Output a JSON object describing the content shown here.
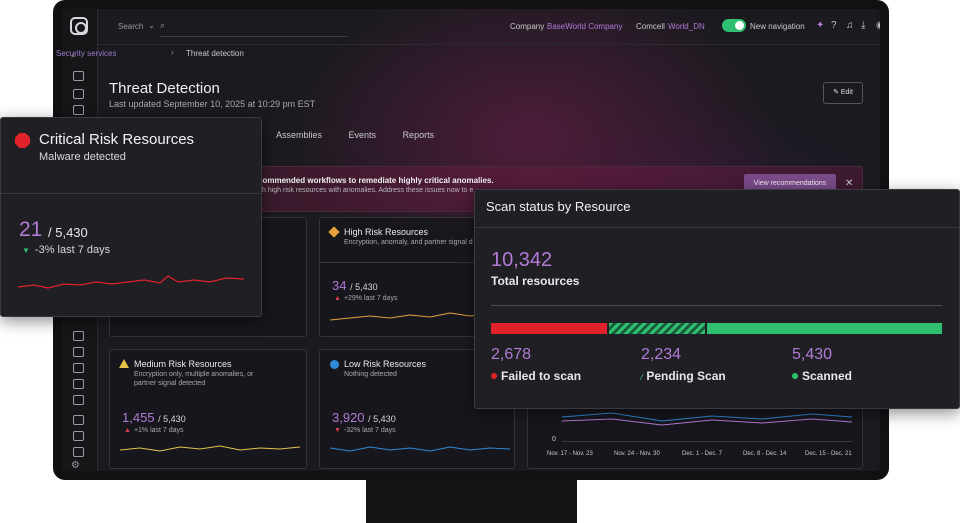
{
  "topbar": {
    "search_label": "Search",
    "company_label": "Company",
    "company_value": "BaseWorld Company",
    "comcell_label": "Comcell",
    "comcell_value": "World_DN",
    "new_navigation_label": "New navigation"
  },
  "breadcrumb": {
    "parent": "Security services",
    "current": "Threat detection"
  },
  "header": {
    "title": "Threat Detection",
    "subtitle": "Last updated September 10, 2025 at 10:29 pm EST",
    "edit_label": "Edit"
  },
  "tabs": [
    {
      "label": "Assemblies"
    },
    {
      "label": "Events"
    },
    {
      "label": "Reports"
    }
  ],
  "banner": {
    "title": "commended workflows to remediate highly critical anomalies.",
    "description": "h high risk resources with anomalies. Address these issues now to e",
    "button_label": "View recommendations"
  },
  "cards": {
    "high": {
      "title": "High Risk Resources",
      "description": "Encryption, anomaly, and partner signal d",
      "value": "34",
      "total": "/ 5,430",
      "change": "+29% last 7 days",
      "color": "#e6a23c"
    },
    "medium": {
      "title": "Medium Risk Resources",
      "description": "Encryption only, multiple anomalies, or partner signal detected",
      "value": "1,455",
      "total": "/ 5,430",
      "change": "+1% last 7 days",
      "color": "#e6c34a"
    },
    "low": {
      "title": "Low Risk Resources",
      "description": "Nothing detected",
      "value": "3,920",
      "total": "/ 5,430",
      "change": "-32% last 7 days",
      "color": "#2f8ad8"
    }
  },
  "critical": {
    "title": "Critical Risk Resources",
    "subtitle": "Malware detected",
    "value": "21",
    "total": "/ 5,430",
    "change": "-3% last 7 days",
    "color": "#e0232a"
  },
  "scan": {
    "title": "Scan status by Resource",
    "total_value": "10,342",
    "total_label": "Total resources",
    "failed": {
      "value": "2,678",
      "label": "Failed to scan",
      "color": "#e0232a",
      "count": 2678
    },
    "pending": {
      "value": "2,234",
      "label": "Pending Scan",
      "color": "#2fbf71",
      "count": 2234
    },
    "scanned": {
      "value": "5,430",
      "label": "Scanned",
      "color": "#2fbf71",
      "count": 5430
    }
  },
  "chart": {
    "y_zero": "0",
    "x_ticks": [
      "Nov. 17 - Nov. 23",
      "Nov. 24 - Nov. 30",
      "Dec. 1 - Dec. 7",
      "Dec. 8 - Dec. 14",
      "Dec. 15 - Dec. 21"
    ]
  },
  "icons": {
    "logo": "logo-icon",
    "search": "search-icon",
    "help": "help-icon",
    "notifications": "bell-icon",
    "download": "download-icon",
    "user": "user-icon",
    "sparkle": "sparkle-icon"
  }
}
